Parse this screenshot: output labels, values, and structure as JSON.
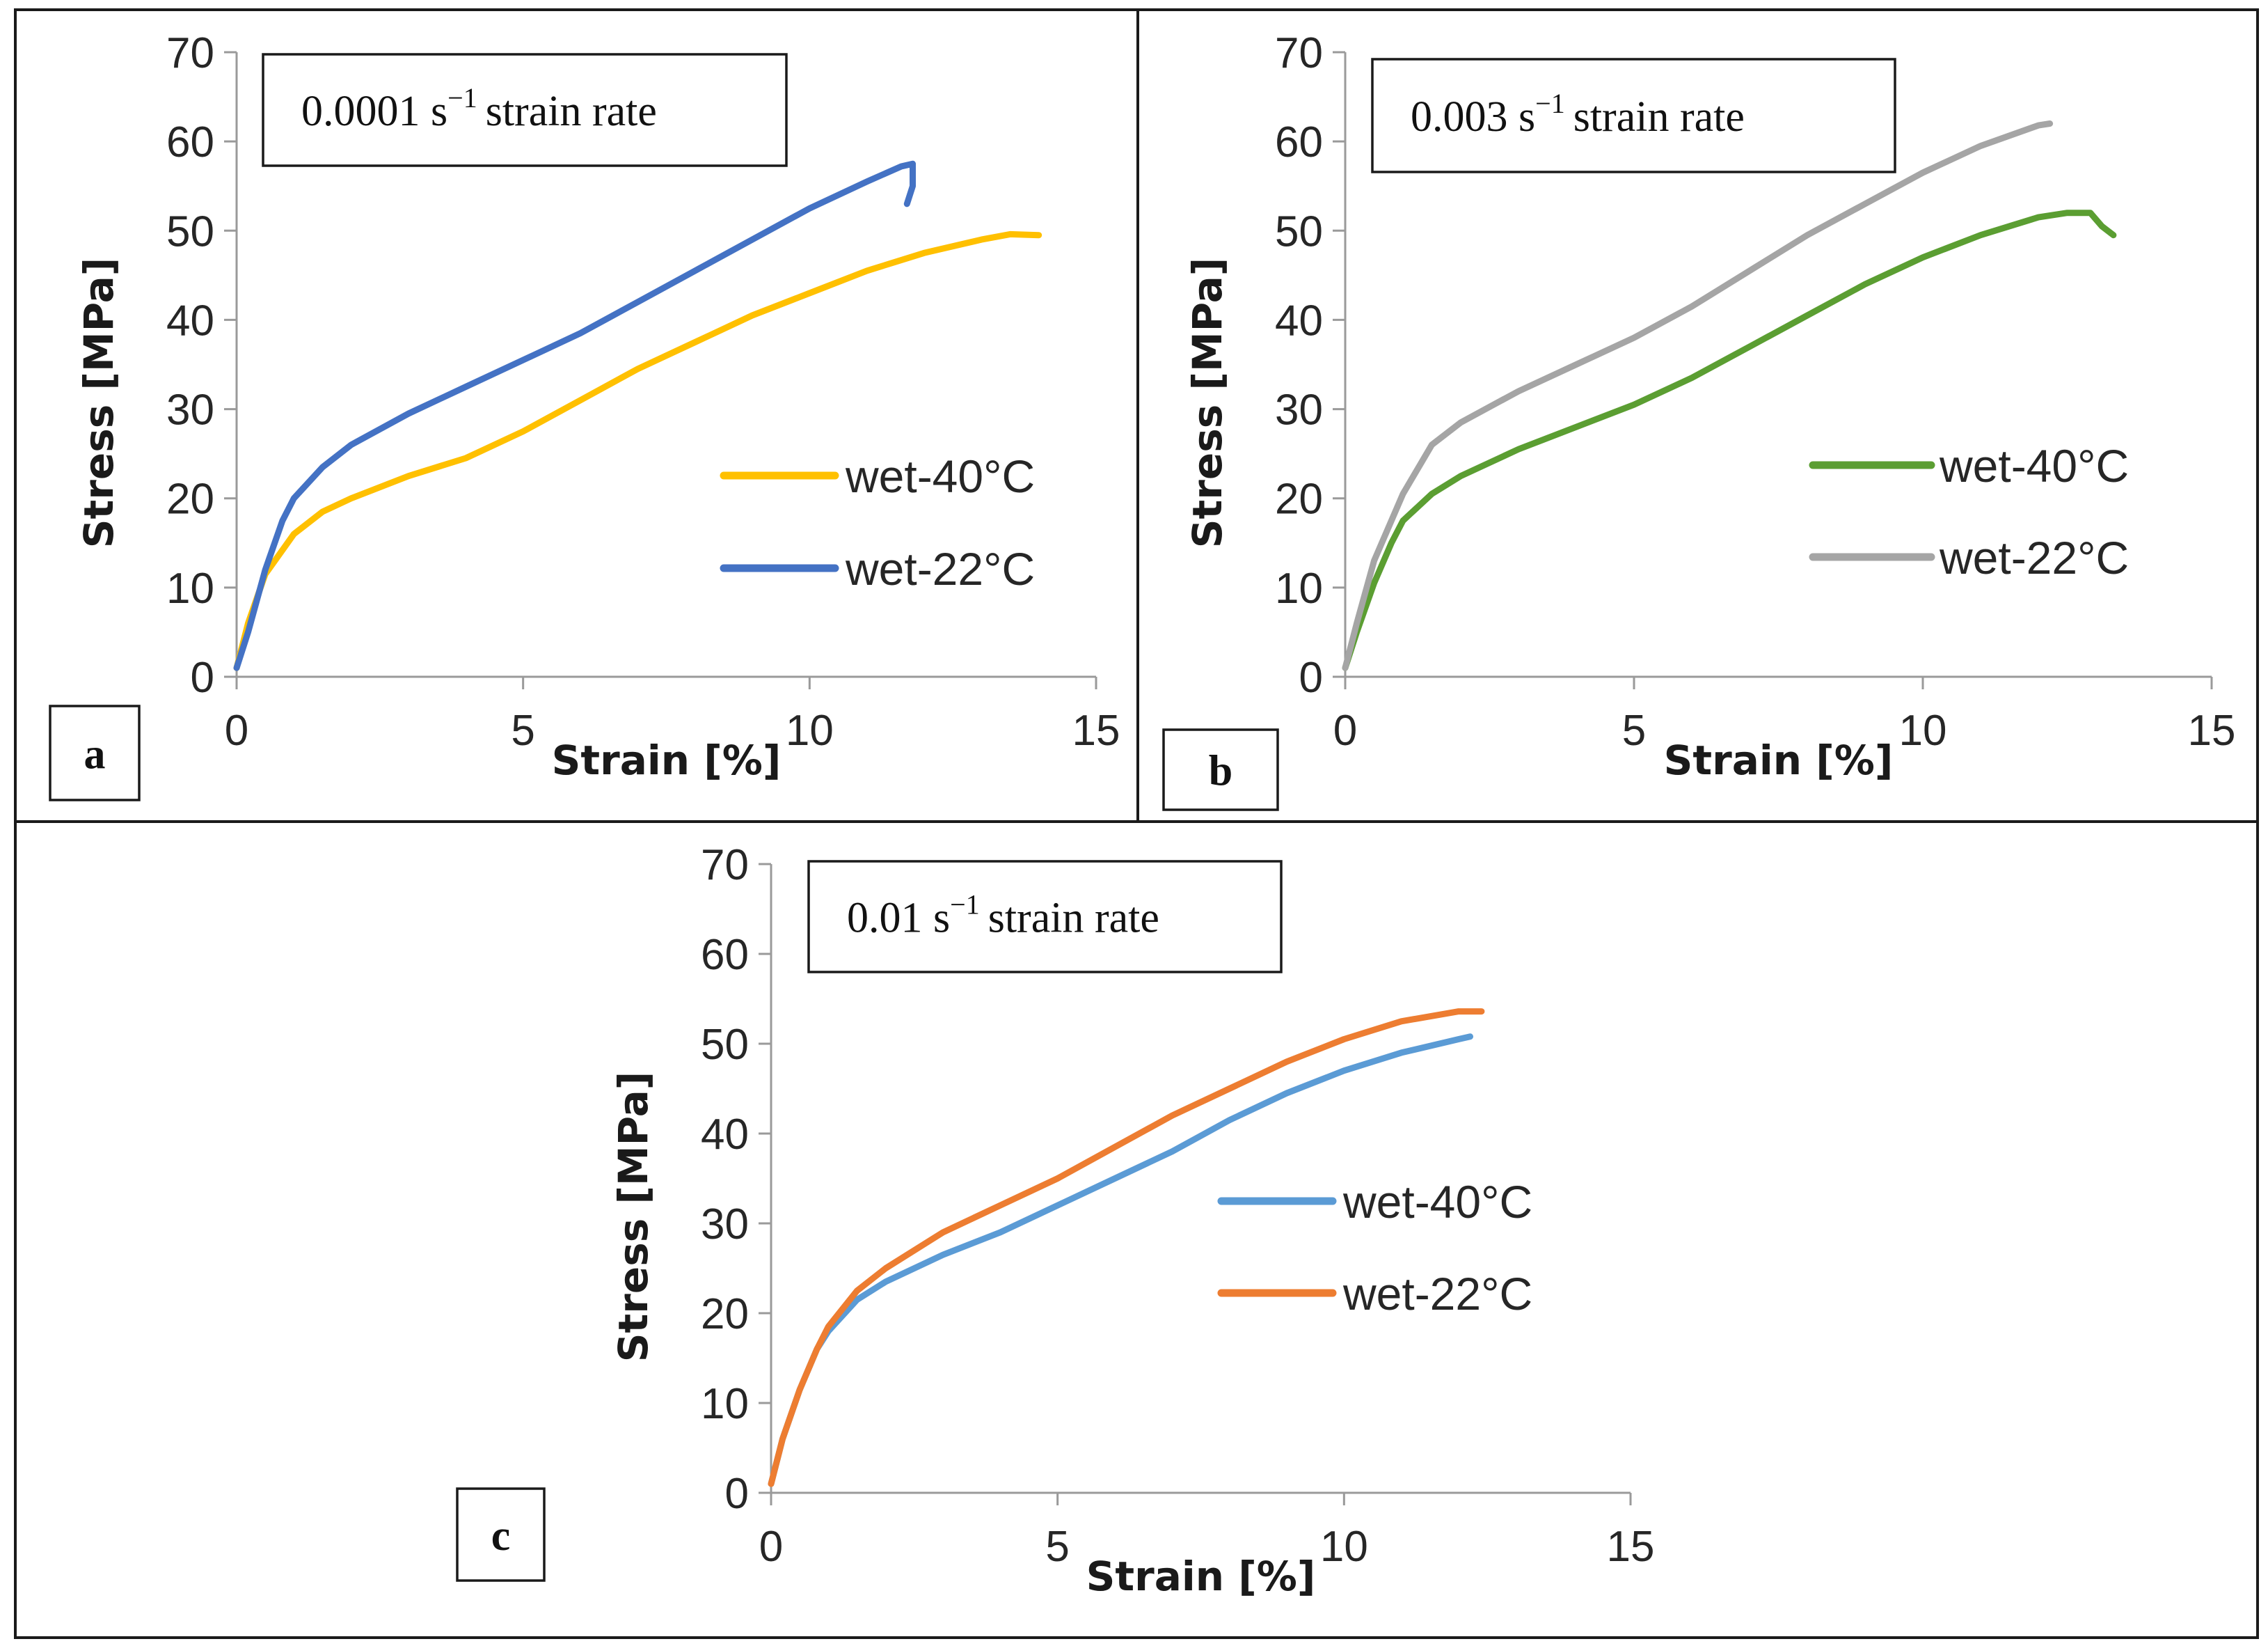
{
  "chart_data": [
    {
      "id": "a",
      "type": "line",
      "panel_label": "a",
      "title": "0.0001 s",
      "title_exponent": "−1",
      "title_suffix": "strain rate",
      "xlabel": "Strain [%]",
      "ylabel": "Stress [MPa]",
      "xlim": [
        0,
        15
      ],
      "ylim": [
        0,
        70
      ],
      "xticks": [
        0,
        5,
        10,
        15
      ],
      "yticks": [
        0,
        10,
        20,
        30,
        40,
        50,
        60,
        70
      ],
      "legend_position": "right",
      "series": [
        {
          "name": "wet-40°C",
          "color": "#FFC000",
          "x": [
            0.0,
            0.2,
            0.5,
            1.0,
            1.5,
            2.0,
            3.0,
            4.0,
            5.0,
            6.0,
            7.0,
            8.0,
            9.0,
            10.0,
            11.0,
            12.0,
            13.0,
            13.5,
            14.0
          ],
          "y": [
            1.0,
            6.0,
            11.5,
            16.0,
            18.5,
            20.0,
            22.5,
            24.5,
            27.5,
            31.0,
            34.5,
            37.5,
            40.5,
            43.0,
            45.5,
            47.5,
            49.0,
            49.6,
            49.5
          ]
        },
        {
          "name": "wet-22°C",
          "color": "#4472C4",
          "x": [
            0.0,
            0.2,
            0.5,
            0.8,
            1.0,
            1.5,
            2.0,
            3.0,
            4.0,
            5.0,
            6.0,
            7.0,
            8.0,
            9.0,
            10.0,
            11.0,
            11.6,
            11.8,
            11.8,
            11.7
          ],
          "y": [
            1.0,
            5.0,
            12.0,
            17.5,
            20.0,
            23.5,
            26.0,
            29.5,
            32.5,
            35.5,
            38.5,
            42.0,
            45.5,
            49.0,
            52.5,
            55.5,
            57.2,
            57.5,
            55.0,
            53.0
          ]
        }
      ]
    },
    {
      "id": "b",
      "type": "line",
      "panel_label": "b",
      "title": "0.003 s",
      "title_exponent": "−1",
      "title_suffix": "strain rate",
      "xlabel": "Strain [%]",
      "ylabel": "Stress [MPa]",
      "xlim": [
        0,
        15
      ],
      "ylim": [
        0,
        70
      ],
      "xticks": [
        0,
        5,
        10,
        15
      ],
      "yticks": [
        0,
        10,
        20,
        30,
        40,
        50,
        60,
        70
      ],
      "legend_position": "right",
      "series": [
        {
          "name": "wet-40°C",
          "color": "#5B9E32",
          "x": [
            0.0,
            0.2,
            0.5,
            0.8,
            1.0,
            1.5,
            2.0,
            3.0,
            4.0,
            5.0,
            6.0,
            7.0,
            8.0,
            9.0,
            10.0,
            11.0,
            12.0,
            12.5,
            12.9,
            13.1,
            13.3
          ],
          "y": [
            1.0,
            5.0,
            10.5,
            15.0,
            17.5,
            20.5,
            22.5,
            25.5,
            28.0,
            30.5,
            33.5,
            37.0,
            40.5,
            44.0,
            47.0,
            49.5,
            51.5,
            52.0,
            52.0,
            50.5,
            49.5
          ]
        },
        {
          "name": "wet-22°C",
          "color": "#A5A5A5",
          "x": [
            0.0,
            0.2,
            0.5,
            1.0,
            1.5,
            2.0,
            3.0,
            4.0,
            5.0,
            6.0,
            7.0,
            8.0,
            9.0,
            10.0,
            11.0,
            12.0,
            12.2
          ],
          "y": [
            1.0,
            6.0,
            13.0,
            20.5,
            26.0,
            28.5,
            32.0,
            35.0,
            38.0,
            41.5,
            45.5,
            49.5,
            53.0,
            56.5,
            59.5,
            61.8,
            62.0
          ]
        }
      ]
    },
    {
      "id": "c",
      "type": "line",
      "panel_label": "c",
      "title": "0.01 s",
      "title_exponent": "−1",
      "title_suffix": "strain rate",
      "xlabel": "Strain [%]",
      "ylabel": "Stress [MPa]",
      "xlim": [
        0,
        15
      ],
      "ylim": [
        0,
        70
      ],
      "xticks": [
        0,
        5,
        10,
        15
      ],
      "yticks": [
        0,
        10,
        20,
        30,
        40,
        50,
        60,
        70
      ],
      "legend_position": "right",
      "series": [
        {
          "name": "wet-40°C",
          "color": "#5B9BD5",
          "x": [
            0.0,
            0.2,
            0.5,
            0.8,
            1.0,
            1.5,
            2.0,
            3.0,
            4.0,
            5.0,
            6.0,
            7.0,
            8.0,
            9.0,
            10.0,
            11.0,
            12.0,
            12.2
          ],
          "y": [
            1.0,
            6.0,
            11.5,
            16.0,
            18.0,
            21.5,
            23.5,
            26.5,
            29.0,
            32.0,
            35.0,
            38.0,
            41.5,
            44.5,
            47.0,
            49.0,
            50.5,
            50.8
          ]
        },
        {
          "name": "wet-22°C",
          "color": "#ED7D31",
          "x": [
            0.0,
            0.2,
            0.5,
            0.8,
            1.0,
            1.5,
            2.0,
            3.0,
            4.0,
            5.0,
            6.0,
            7.0,
            8.0,
            9.0,
            10.0,
            11.0,
            12.0,
            12.4
          ],
          "y": [
            1.0,
            6.0,
            11.5,
            16.0,
            18.5,
            22.5,
            25.0,
            29.0,
            32.0,
            35.0,
            38.5,
            42.0,
            45.0,
            48.0,
            50.5,
            52.5,
            53.6,
            53.6
          ]
        }
      ]
    }
  ]
}
